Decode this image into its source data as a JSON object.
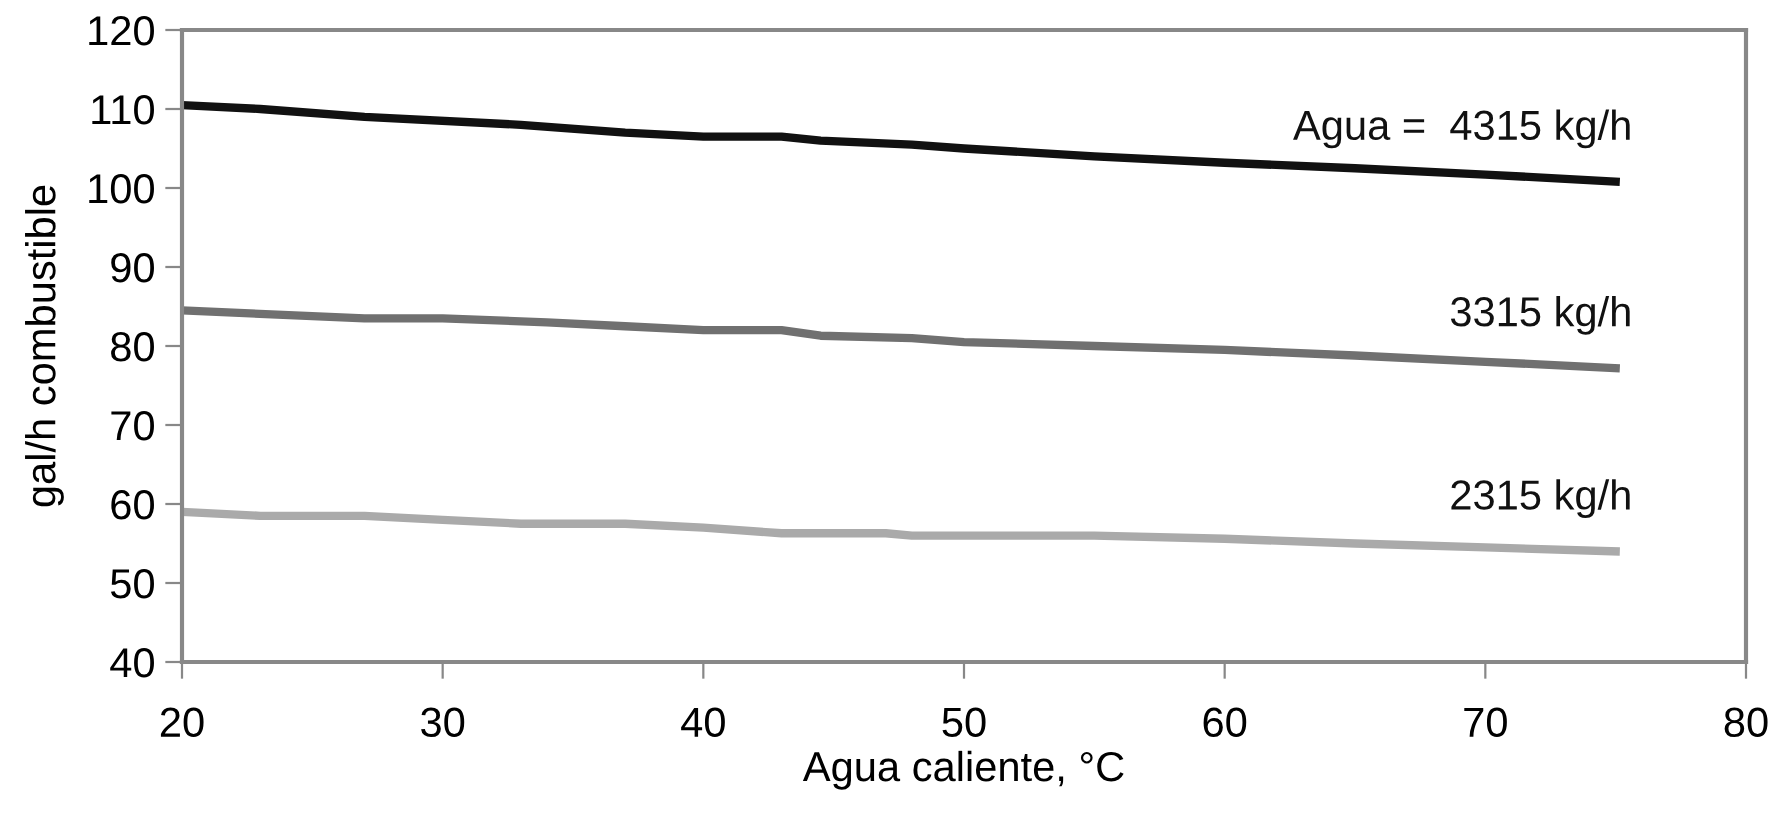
{
  "chart_data": {
    "type": "line",
    "xlabel": "Agua caliente, °C",
    "ylabel": "gal/h combustible",
    "xlim": [
      20,
      80
    ],
    "xticks": [
      20,
      30,
      40,
      50,
      60,
      70,
      80
    ],
    "ylim": [
      40,
      120
    ],
    "yticks": [
      40,
      50,
      60,
      70,
      80,
      90,
      100,
      110,
      120
    ],
    "grid": false,
    "legend": false,
    "marker": "none",
    "line_style": "solid",
    "series": [
      {
        "name": "Agua =  4315 kg/h",
        "color": "#111111",
        "x": [
          20,
          23,
          27,
          33,
          37,
          40,
          43,
          44.5,
          48,
          50,
          55,
          60,
          65,
          70,
          75
        ],
        "values": [
          110.5,
          110,
          109,
          108,
          107,
          106.5,
          106.5,
          106,
          105.5,
          105,
          104,
          103.2,
          102.5,
          101.7,
          100.8
        ]
      },
      {
        "name": "3315 kg/h",
        "color": "#707070",
        "x": [
          20,
          27,
          30,
          34,
          37,
          40,
          43,
          44.5,
          48,
          50,
          55,
          60,
          65,
          70,
          75
        ],
        "values": [
          84.5,
          83.5,
          83.5,
          83,
          82.5,
          82,
          82,
          81.3,
          81,
          80.5,
          80,
          79.5,
          78.8,
          78,
          77.2
        ]
      },
      {
        "name": "2315 kg/h",
        "color": "#aaaaaa",
        "x": [
          20,
          23,
          27,
          30,
          33,
          37,
          40,
          43,
          47,
          48,
          55,
          60,
          65,
          70,
          75
        ],
        "values": [
          59,
          58.5,
          58.5,
          58,
          57.5,
          57.5,
          57,
          56.3,
          56.3,
          56,
          56,
          55.6,
          55,
          54.5,
          54
        ]
      }
    ]
  }
}
